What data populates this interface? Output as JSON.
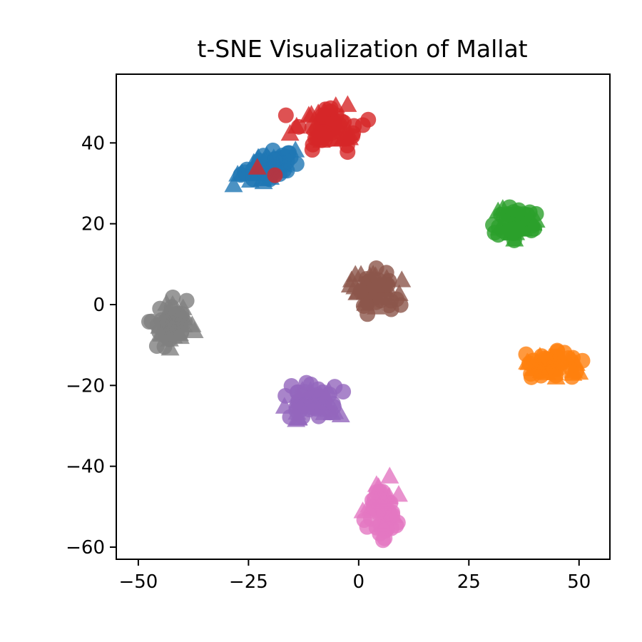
{
  "chart_data": {
    "type": "scatter",
    "title": "t-SNE Visualization of Mallat",
    "xlabel": "",
    "ylabel": "",
    "xlim": [
      -55,
      57
    ],
    "ylim": [
      -63,
      57
    ],
    "x_ticks": [
      -50,
      -25,
      0,
      25,
      50
    ],
    "x_tick_labels": [
      "−50",
      "−25",
      "0",
      "25",
      "50"
    ],
    "y_ticks": [
      -60,
      -40,
      -20,
      0,
      20,
      40
    ],
    "y_tick_labels": [
      "−60",
      "−40",
      "−20",
      "0",
      "20",
      "40"
    ],
    "grid": false,
    "legend": "none",
    "marker_note": "points drawn as circles and triangles, semi-transparent",
    "clusters": [
      {
        "color": "#1f77b4",
        "center": [
          -21,
          34
        ],
        "spread": [
          6,
          3
        ],
        "shape": "ellipse-tilted",
        "points": 70
      },
      {
        "color": "#d62728",
        "center": [
          -6,
          44
        ],
        "spread": [
          6,
          5
        ],
        "points": 80
      },
      {
        "color": "#2ca02c",
        "center": [
          36,
          20
        ],
        "spread": [
          5,
          3.5
        ],
        "points": 60
      },
      {
        "color": "#8c564b",
        "center": [
          4,
          3
        ],
        "spread": [
          5,
          4.5
        ],
        "points": 60
      },
      {
        "color": "#7f7f7f",
        "center": [
          -43,
          -5
        ],
        "spread": [
          4.5,
          5
        ],
        "points": 60
      },
      {
        "color": "#ff7f0e",
        "center": [
          44,
          -15
        ],
        "spread": [
          6,
          3
        ],
        "points": 60
      },
      {
        "color": "#9467bd",
        "center": [
          -10,
          -24
        ],
        "spread": [
          6,
          4
        ],
        "points": 60
      },
      {
        "color": "#e377c2",
        "center": [
          5,
          -50
        ],
        "spread": [
          3.5,
          6
        ],
        "points": 60
      }
    ],
    "outliers": [
      {
        "color": "#d62728",
        "x": -19,
        "y": 32,
        "marker": "circle"
      },
      {
        "color": "#d62728",
        "x": -23,
        "y": 34,
        "marker": "triangle"
      }
    ]
  }
}
